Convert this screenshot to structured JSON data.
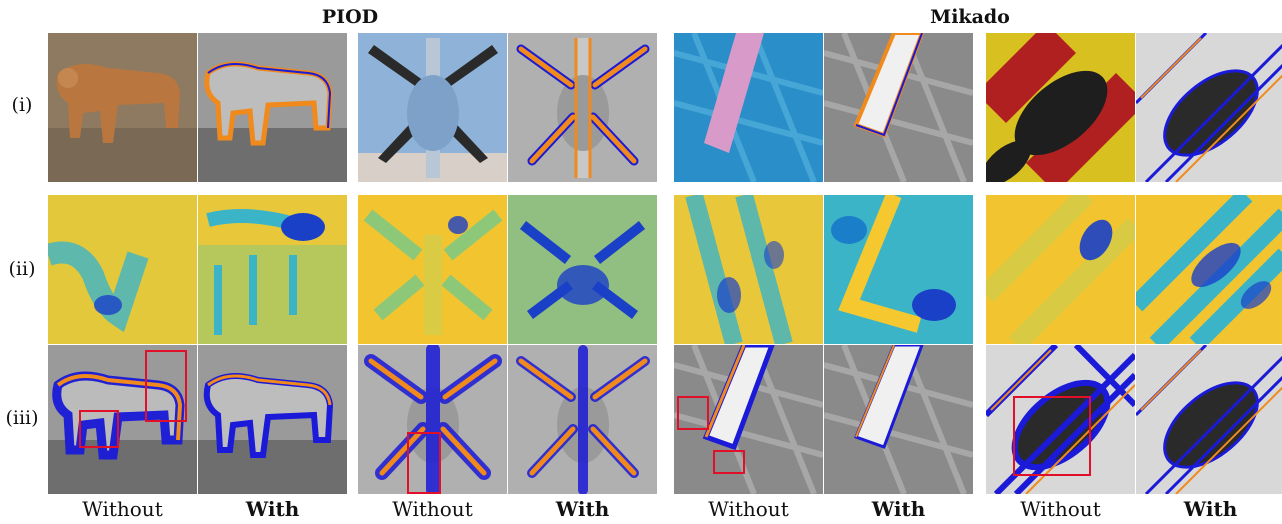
{
  "headers": {
    "left": "PIOD",
    "right": "Mikado"
  },
  "row_labels": [
    "(i)",
    "(ii)",
    "(iii)"
  ],
  "captions": [
    "Without",
    "With",
    "Without",
    "With",
    "Without",
    "With",
    "Without",
    "With"
  ],
  "caption_bold": [
    false,
    true,
    false,
    true,
    false,
    true,
    false,
    true
  ],
  "colors": {
    "boundary_orange": "#f08a1c",
    "boundary_blue": "#1a1ad8",
    "highlight_box": "#e0102a",
    "heat_low": "#1a40c8",
    "heat_mid": "#3cb4c8",
    "heat_high": "#f5c830"
  }
}
